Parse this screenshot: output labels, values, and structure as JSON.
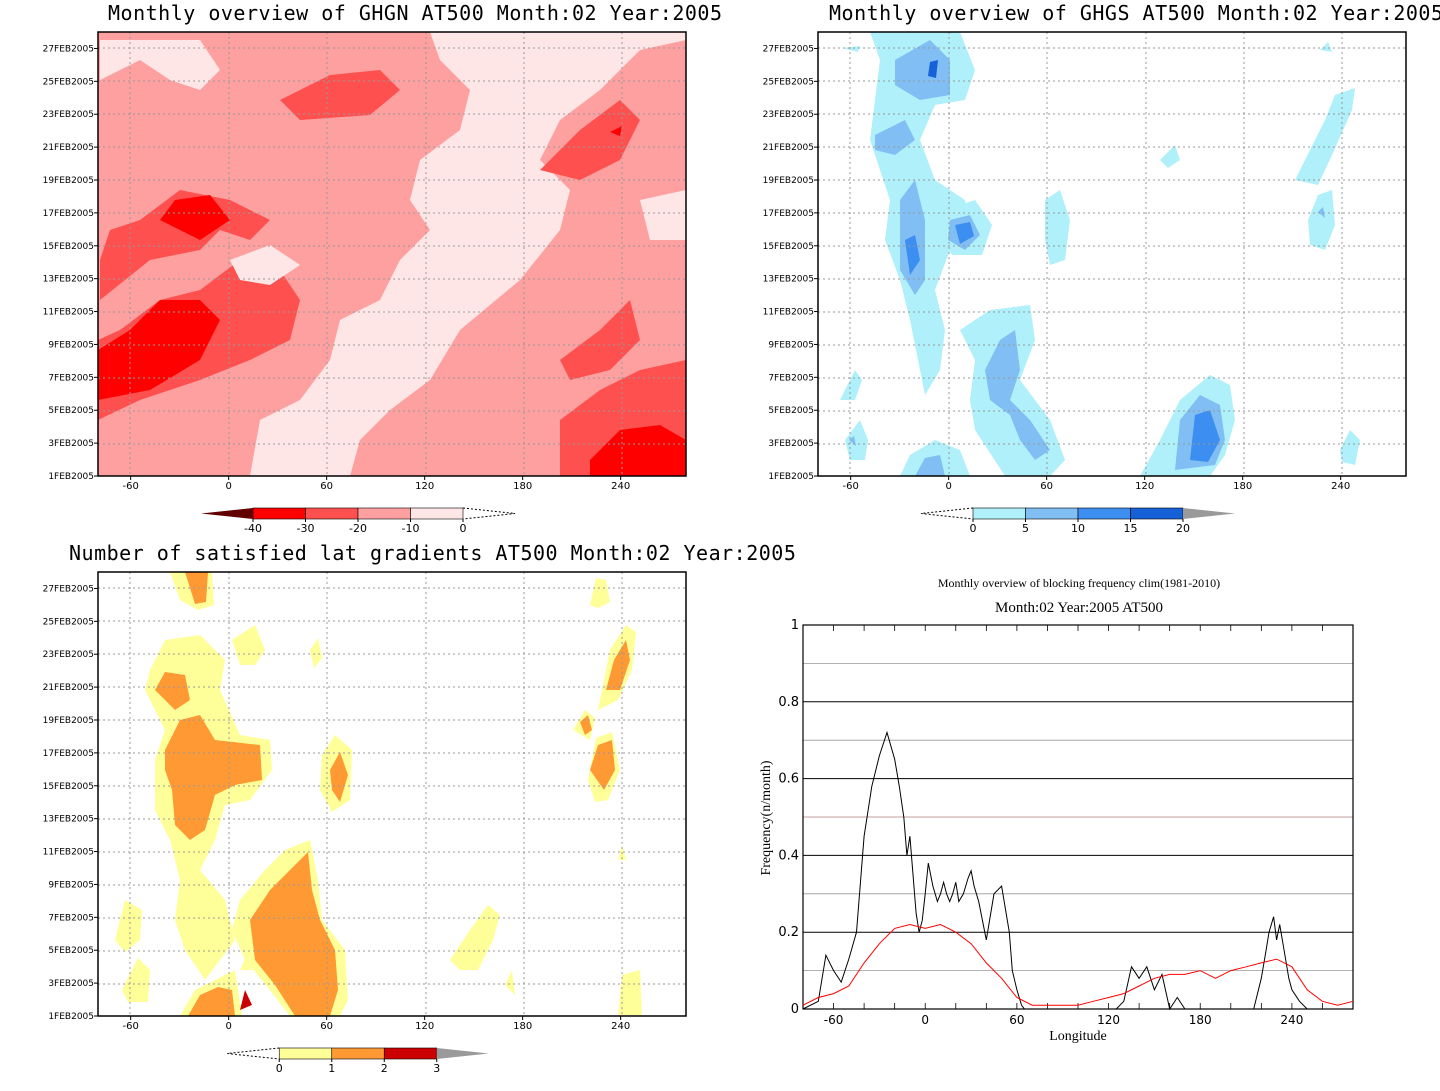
{
  "chart_data": [
    {
      "type": "heatmap",
      "title": "Monthly overview of GHGN AT500 Month:02 Year:2005",
      "y_ticks": [
        "1FEB2005",
        "3FEB2005",
        "5FEB2005",
        "7FEB2005",
        "9FEB2005",
        "11FEB2005",
        "13FEB2005",
        "15FEB2005",
        "17FEB2005",
        "19FEB2005",
        "21FEB2005",
        "23FEB2005",
        "25FEB2005",
        "27FEB2005"
      ],
      "x_ticks": [
        "-60",
        "0",
        "60",
        "120",
        "180",
        "240"
      ],
      "colorbar": {
        "levels": [
          "-40",
          "-30",
          "-20",
          "-10",
          "0"
        ],
        "colors": [
          "#ff0000",
          "#ff5050",
          "#ffa0a0",
          "#ffe6e6"
        ],
        "low_color": "#600000",
        "high": "white"
      }
    },
    {
      "type": "heatmap",
      "title": "Monthly overview of GHGS AT500 Month:02 Year:2005",
      "y_ticks": [
        "1FEB2005",
        "3FEB2005",
        "5FEB2005",
        "7FEB2005",
        "9FEB2005",
        "11FEB2005",
        "13FEB2005",
        "15FEB2005",
        "17FEB2005",
        "19FEB2005",
        "21FEB2005",
        "23FEB2005",
        "25FEB2005",
        "27FEB2005"
      ],
      "x_ticks": [
        "-60",
        "0",
        "60",
        "120",
        "180",
        "240"
      ],
      "colorbar": {
        "levels": [
          "0",
          "5",
          "10",
          "15",
          "20"
        ],
        "colors": [
          "#b0f0fa",
          "#80bef4",
          "#3c8ef0",
          "#1660d8"
        ],
        "high_color": "#9a9a9a",
        "low": "white"
      }
    },
    {
      "type": "heatmap",
      "title": "Number of satisfied lat gradients AT500 Month:02 Year:2005",
      "y_ticks": [
        "1FEB2005",
        "3FEB2005",
        "5FEB2005",
        "7FEB2005",
        "9FEB2005",
        "11FEB2005",
        "13FEB2005",
        "15FEB2005",
        "17FEB2005",
        "19FEB2005",
        "21FEB2005",
        "23FEB2005",
        "25FEB2005",
        "27FEB2005"
      ],
      "x_ticks": [
        "-60",
        "0",
        "60",
        "120",
        "180",
        "240"
      ],
      "colorbar": {
        "levels": [
          "0",
          "1",
          "2",
          "3"
        ],
        "colors": [
          "#ffff99",
          "#ff9933",
          "#cc0000"
        ],
        "high_color": "#9a9a9a",
        "low": "white"
      }
    },
    {
      "type": "line",
      "title": "Monthly overview of blocking frequency clim(1981-2010)",
      "subtitle": "Month:02 Year:2005  AT500",
      "xlabel": "Longitude",
      "ylabel": "Frequency(n/month)",
      "xlim": [
        -80,
        280
      ],
      "ylim": [
        0,
        1
      ],
      "x_ticks": [
        "-60",
        "0",
        "60",
        "120",
        "180",
        "240"
      ],
      "y_ticks": [
        "0",
        "0.2",
        "0.4",
        "0.6",
        "0.8",
        "1"
      ],
      "grid": true,
      "series": [
        {
          "color": "#000000",
          "x": [
            -80,
            -70,
            -65,
            -60,
            -55,
            -50,
            -45,
            -40,
            -35,
            -30,
            -25,
            -20,
            -17,
            -14,
            -12,
            -10,
            -8,
            -6,
            -4,
            -2,
            0,
            2,
            5,
            8,
            10,
            12,
            14,
            16,
            18,
            20,
            22,
            25,
            28,
            30,
            32,
            35,
            40,
            45,
            50,
            55,
            57,
            60,
            63,
            65,
            70,
            75,
            80,
            85,
            90,
            95,
            100,
            105,
            110,
            115,
            120,
            125,
            130,
            135,
            140,
            145,
            150,
            155,
            160,
            165,
            170,
            175,
            180,
            185,
            190,
            195,
            200,
            205,
            210,
            215,
            220,
            223,
            225,
            228,
            230,
            232,
            235,
            238,
            240,
            245,
            250,
            255,
            260,
            270,
            280
          ],
          "y": [
            0,
            0.02,
            0.14,
            0.1,
            0.07,
            0.13,
            0.2,
            0.45,
            0.58,
            0.66,
            0.72,
            0.65,
            0.58,
            0.5,
            0.4,
            0.45,
            0.35,
            0.25,
            0.2,
            0.23,
            0.3,
            0.38,
            0.32,
            0.28,
            0.3,
            0.33,
            0.3,
            0.28,
            0.3,
            0.33,
            0.28,
            0.3,
            0.34,
            0.36,
            0.32,
            0.28,
            0.18,
            0.3,
            0.32,
            0.2,
            0.1,
            0.05,
            0.01,
            0,
            0,
            0,
            0,
            0,
            0,
            0,
            0,
            0,
            0,
            0,
            0,
            0,
            0.02,
            0.11,
            0.08,
            0.11,
            0.05,
            0.09,
            0,
            0.03,
            0,
            0,
            0,
            0,
            0,
            0,
            0,
            0,
            0,
            0,
            0.08,
            0.15,
            0.2,
            0.24,
            0.18,
            0.22,
            0.15,
            0.08,
            0.05,
            0.02,
            0,
            0,
            0,
            0,
            0
          ]
        },
        {
          "color": "#ff0000",
          "x": [
            -80,
            -70,
            -60,
            -50,
            -40,
            -30,
            -20,
            -10,
            0,
            10,
            20,
            30,
            40,
            50,
            60,
            70,
            80,
            90,
            100,
            110,
            120,
            130,
            140,
            150,
            160,
            170,
            180,
            190,
            200,
            210,
            220,
            230,
            240,
            250,
            260,
            270,
            280
          ],
          "y": [
            0.01,
            0.03,
            0.04,
            0.06,
            0.12,
            0.17,
            0.21,
            0.22,
            0.21,
            0.22,
            0.2,
            0.17,
            0.12,
            0.08,
            0.03,
            0.01,
            0.01,
            0.01,
            0.01,
            0.02,
            0.03,
            0.04,
            0.06,
            0.08,
            0.09,
            0.09,
            0.1,
            0.08,
            0.1,
            0.11,
            0.12,
            0.13,
            0.11,
            0.05,
            0.02,
            0.01,
            0.02
          ]
        }
      ]
    }
  ]
}
